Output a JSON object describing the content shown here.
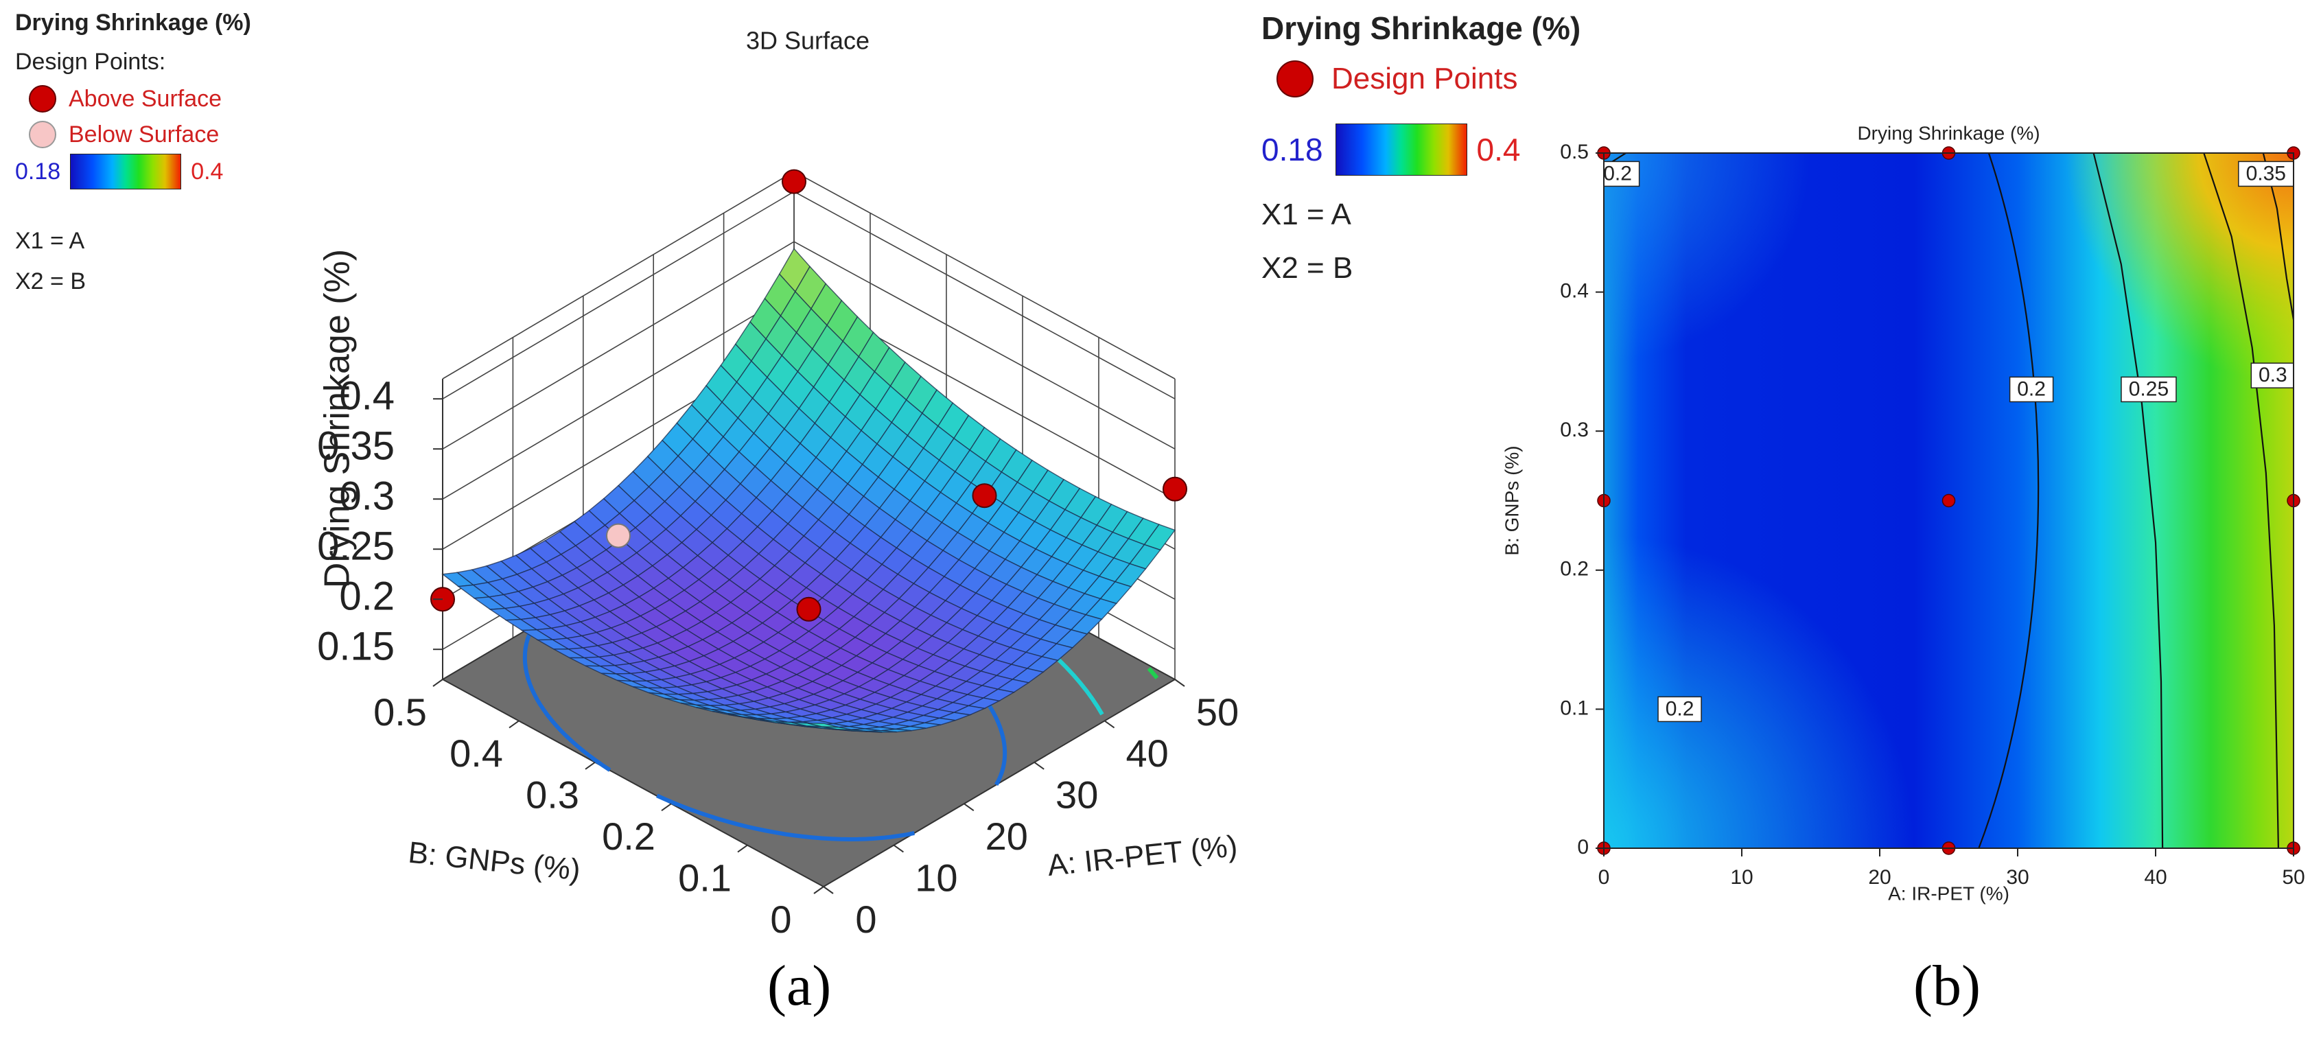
{
  "chart_data": [
    {
      "type": "surface",
      "panel": "(a)",
      "title": "3D Surface",
      "response": "Drying Shrinkage (%)",
      "xlabel": "A: IR-PET (%)",
      "ylabel": "B: GNPs (%)",
      "zlabel": "Drying Shrinkage (%)",
      "x_ticks": [
        "0",
        "10",
        "20",
        "30",
        "40",
        "50"
      ],
      "y_ticks": [
        "0",
        "0.1",
        "0.2",
        "0.3",
        "0.4",
        "0.5"
      ],
      "z_ticks": [
        "0.15",
        "0.2",
        "0.25",
        "0.3",
        "0.35",
        "0.4"
      ],
      "xlim": [
        0,
        50
      ],
      "ylim": [
        0,
        0.5
      ],
      "zlim": [
        0.12,
        0.42
      ],
      "design_points": [
        {
          "x": 50,
          "y": 0.5,
          "z": 0.41,
          "type": "above"
        },
        {
          "x": 0,
          "y": 0.5,
          "z": 0.2,
          "type": "above"
        },
        {
          "x": 50,
          "y": 0,
          "z": 0.31,
          "type": "above"
        },
        {
          "x": 25,
          "y": 0.25,
          "z": 0.19,
          "type": "above"
        },
        {
          "x": 50,
          "y": 0.25,
          "z": 0.2,
          "type": "above"
        },
        {
          "x": 25,
          "y": 0.5,
          "z": 0.16,
          "type": "below"
        }
      ],
      "legend": {
        "title": "Drying Shrinkage (%)",
        "header": "Design Points:",
        "above_label": "Above Surface",
        "below_label": "Below Surface",
        "range_min": "0.18",
        "range_max": "0.4",
        "x1": "X1 = A",
        "x2": "X2 = B"
      }
    },
    {
      "type": "contour",
      "panel": "(b)",
      "title": "Drying Shrinkage (%)",
      "xlabel": "A: IR-PET (%)",
      "ylabel": "B: GNPs (%)",
      "x_ticks": [
        "0",
        "10",
        "20",
        "30",
        "40",
        "50"
      ],
      "y_ticks": [
        "0",
        "0.1",
        "0.2",
        "0.3",
        "0.4",
        "0.5"
      ],
      "xlim": [
        0,
        50
      ],
      "ylim": [
        0,
        0.5
      ],
      "contour_labels": [
        {
          "text": "0.2",
          "x": 1,
          "y": 0.49
        },
        {
          "text": "0.2",
          "x": 31,
          "y": 0.33
        },
        {
          "text": "0.2",
          "x": 5.5,
          "y": 0.1
        },
        {
          "text": "0.25",
          "x": 39.5,
          "y": 0.33
        },
        {
          "text": "0.3",
          "x": 48.5,
          "y": 0.34
        },
        {
          "text": "0.35",
          "x": 48,
          "y": 0.53
        }
      ],
      "design_points": [
        {
          "x": 0,
          "y": 0.5
        },
        {
          "x": 25,
          "y": 0.5
        },
        {
          "x": 50,
          "y": 0.5
        },
        {
          "x": 0,
          "y": 0.25
        },
        {
          "x": 25,
          "y": 0.25
        },
        {
          "x": 50,
          "y": 0.25
        },
        {
          "x": 0,
          "y": 0
        },
        {
          "x": 25,
          "y": 0
        },
        {
          "x": 50,
          "y": 0
        }
      ],
      "legend": {
        "title": "Drying Shrinkage (%)",
        "points_label": "Design Points",
        "range_min": "0.18",
        "range_max": "0.4",
        "x1": "X1 = A",
        "x2": "X2 = B"
      }
    }
  ],
  "panel_labels": {
    "a": "(a)",
    "b": "(b)"
  },
  "colors": {
    "above": "#cc0000",
    "below": "#f7c6c6",
    "min_color": "#2222cc",
    "max_color": "#dd2222",
    "floor": "#6e6e6e"
  }
}
